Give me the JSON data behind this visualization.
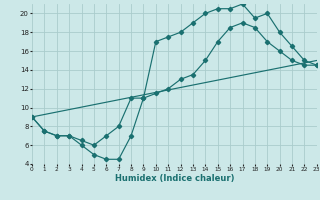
{
  "xlabel": "Humidex (Indice chaleur)",
  "bg_color": "#cce8e8",
  "grid_color": "#aacccc",
  "line_color": "#1a7070",
  "xlim": [
    0,
    23
  ],
  "ylim": [
    4,
    21
  ],
  "xticks": [
    0,
    1,
    2,
    3,
    4,
    5,
    6,
    7,
    8,
    9,
    10,
    11,
    12,
    13,
    14,
    15,
    16,
    17,
    18,
    19,
    20,
    21,
    22,
    23
  ],
  "yticks": [
    4,
    6,
    8,
    10,
    12,
    14,
    16,
    18,
    20
  ],
  "line1_x": [
    0,
    1,
    2,
    3,
    4,
    5,
    6,
    7,
    8,
    9,
    10,
    11,
    12,
    13,
    14,
    15,
    16,
    17,
    18,
    19,
    20,
    21,
    22,
    23
  ],
  "line1_y": [
    9,
    7.5,
    7,
    7,
    6.5,
    6,
    7,
    8,
    11,
    11,
    17,
    17.5,
    18,
    19,
    20,
    20.5,
    20.5,
    21,
    19.5,
    20,
    18,
    16.5,
    15,
    14.5
  ],
  "line2_x": [
    0,
    1,
    2,
    3,
    4,
    5,
    6,
    7,
    8,
    9,
    10,
    11,
    12,
    13,
    14,
    15,
    16,
    17,
    18,
    19,
    20,
    21,
    22,
    23
  ],
  "line2_y": [
    9,
    7.5,
    7,
    7,
    6,
    5,
    4.5,
    4.5,
    7,
    11,
    11.5,
    12,
    13,
    13.5,
    15,
    17,
    18.5,
    19,
    18.5,
    17,
    16,
    15,
    14.5,
    14.5
  ],
  "line3_x": [
    0,
    23
  ],
  "line3_y": [
    9,
    15
  ]
}
